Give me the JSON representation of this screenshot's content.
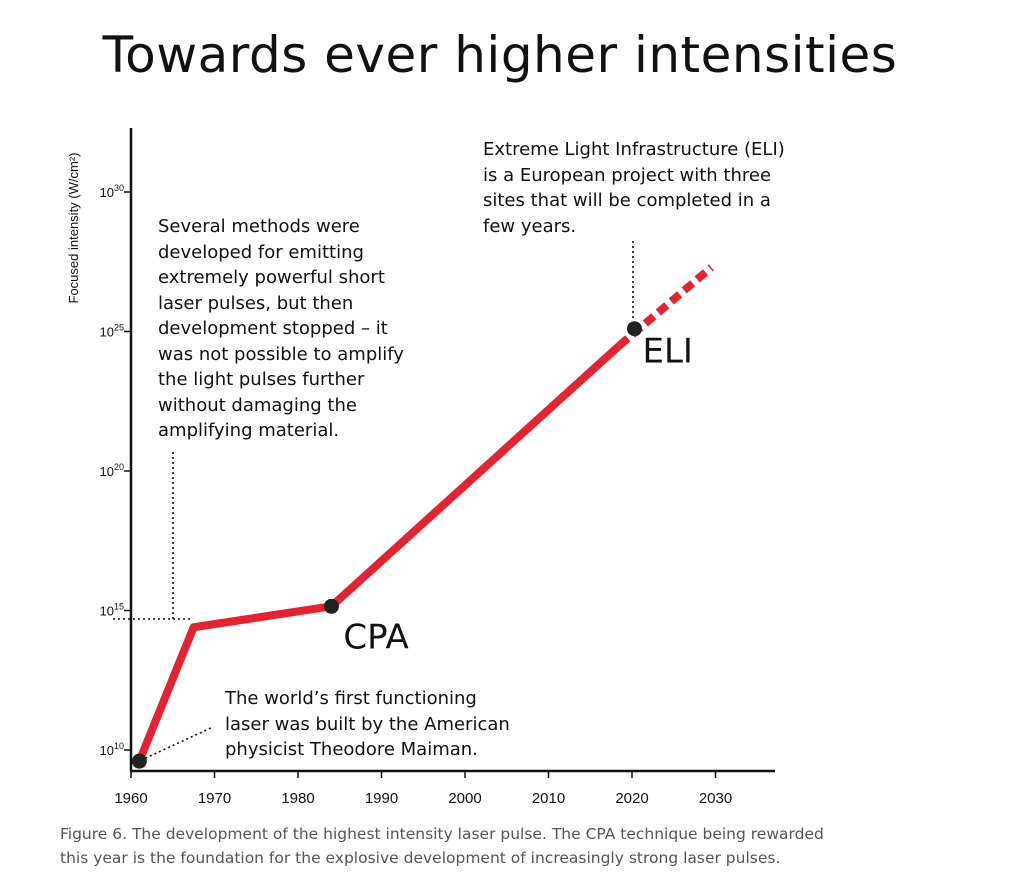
{
  "title": "Towards ever higher intensities",
  "caption": "Figure 6. The development of the highest intensity laser pulse. The CPA technique being rewarded\nthis year is the foundation for the explosive development of increasingly strong laser pulses.",
  "annotations": {
    "maiman": "The world’s first functioning\nlaser was built by the American\nphysicist Theodore Maiman.",
    "stall": "Several methods were\ndeveloped for emitting\nextremely powerful short\nlaser pulses, but then\ndevelopment stopped – it\nwas not possible to amplify\nthe light pulses further\nwithout damaging the\namplifying material.",
    "eli": "Extreme Light Infrastructure (ELI)\nis a European project with three\nsites that will be completed in a\nfew years."
  },
  "chart_data": {
    "type": "line",
    "title": "Towards ever higher intensities",
    "xlabel": "",
    "ylabel": "Focused intensity (W/cm²)",
    "y_scale": "log",
    "xlim": [
      1960,
      2036
    ],
    "ylim_exponent": [
      9.7,
      31.0
    ],
    "x_ticks": [
      "1960",
      "1970",
      "1980",
      "1990",
      "2000",
      "2010",
      "2020",
      "2030"
    ],
    "y_ticks": [
      {
        "base": "10",
        "exp": "10",
        "value": 10
      },
      {
        "base": "10",
        "exp": "15",
        "value": 15
      },
      {
        "base": "10",
        "exp": "20",
        "value": 20
      },
      {
        "base": "10",
        "exp": "25",
        "value": 25
      },
      {
        "base": "10",
        "exp": "30",
        "value": 30
      }
    ],
    "series": [
      {
        "style": "solid",
        "color": "#e52330",
        "x": [
          1961,
          1967.5,
          1984,
          2018.5
        ],
        "log10_y": [
          9.6,
          14.4,
          15.15,
          24.5
        ]
      },
      {
        "style": "dashed",
        "color": "#e52330",
        "x": [
          2018.5,
          2029.5
        ],
        "log10_y": [
          24.5,
          27.3
        ]
      }
    ],
    "points": [
      {
        "x": 1961,
        "log10_y": 9.6,
        "label": ""
      },
      {
        "x": 1984,
        "log10_y": 15.15,
        "label": "CPA"
      },
      {
        "x": 2020.3,
        "log10_y": 25.1,
        "label": "ELI"
      }
    ],
    "guide_color": "#111111"
  }
}
